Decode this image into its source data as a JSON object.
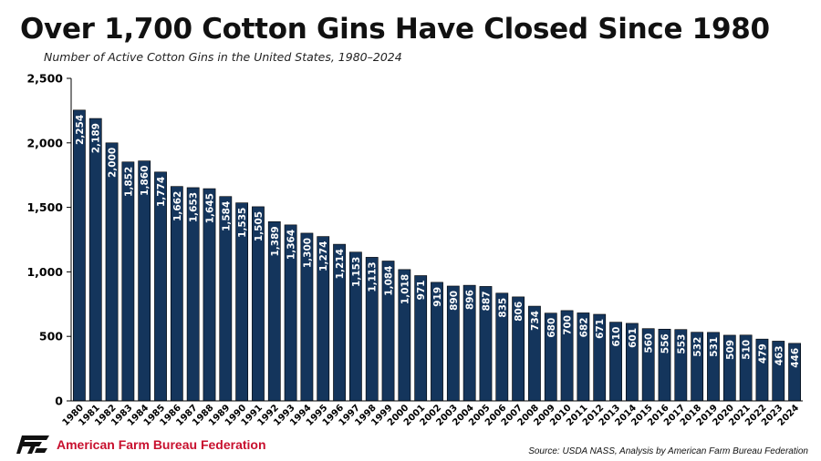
{
  "title": "Over 1,700 Cotton Gins Have Closed Since 1980",
  "subtitle": "Number of Active Cotton Gins in the United States, 1980–2024",
  "footer": {
    "org_name": "American Farm Bureau Federation",
    "org_color": "#c8102e",
    "logo_icon": "afbf-logo-icon",
    "source": "Source: USDA NASS, Analysis by American Farm Bureau Federation"
  },
  "colors": {
    "bar": "#14355c",
    "bar_label": "#ffffff",
    "axis": "#000000"
  },
  "chart_data": {
    "type": "bar",
    "title": "Over 1,700 Cotton Gins Have Closed Since 1980",
    "subtitle": "Number of Active Cotton Gins in the United States, 1980–2024",
    "xlabel": "",
    "ylabel": "",
    "ylim": [
      0,
      2500
    ],
    "yticks": [
      0,
      500,
      1000,
      1500,
      2000,
      2500
    ],
    "ytick_labels": [
      "0",
      "500",
      "1,000",
      "1,500",
      "2,000",
      "2,500"
    ],
    "grid": false,
    "legend": "none",
    "categories": [
      "1980",
      "1981",
      "1982",
      "1983",
      "1984",
      "1985",
      "1986",
      "1987",
      "1988",
      "1989",
      "1990",
      "1991",
      "1992",
      "1993",
      "1994",
      "1995",
      "1996",
      "1997",
      "1998",
      "1999",
      "2000",
      "2001",
      "2002",
      "2003",
      "2004",
      "2005",
      "2006",
      "2007",
      "2008",
      "2009",
      "2010",
      "2011",
      "2012",
      "2013",
      "2014",
      "2015",
      "2016",
      "2017",
      "2018",
      "2019",
      "2020",
      "2021",
      "2022",
      "2023",
      "2024"
    ],
    "values": [
      2254,
      2189,
      2000,
      1852,
      1860,
      1774,
      1662,
      1653,
      1645,
      1584,
      1535,
      1505,
      1389,
      1364,
      1300,
      1274,
      1214,
      1153,
      1113,
      1084,
      1018,
      971,
      919,
      890,
      896,
      887,
      835,
      806,
      734,
      680,
      700,
      682,
      671,
      610,
      601,
      560,
      556,
      553,
      532,
      531,
      509,
      510,
      479,
      463,
      446
    ],
    "value_labels": [
      "2,254",
      "2,189",
      "2,000",
      "1,852",
      "1,860",
      "1,774",
      "1,662",
      "1,653",
      "1,645",
      "1,584",
      "1,535",
      "1,505",
      "1,389",
      "1,364",
      "1,300",
      "1,274",
      "1,214",
      "1,153",
      "1,113",
      "1,084",
      "1,018",
      "971",
      "919",
      "890",
      "896",
      "887",
      "835",
      "806",
      "734",
      "680",
      "700",
      "682",
      "671",
      "610",
      "601",
      "560",
      "556",
      "553",
      "532",
      "531",
      "509",
      "510",
      "479",
      "463",
      "446"
    ]
  }
}
